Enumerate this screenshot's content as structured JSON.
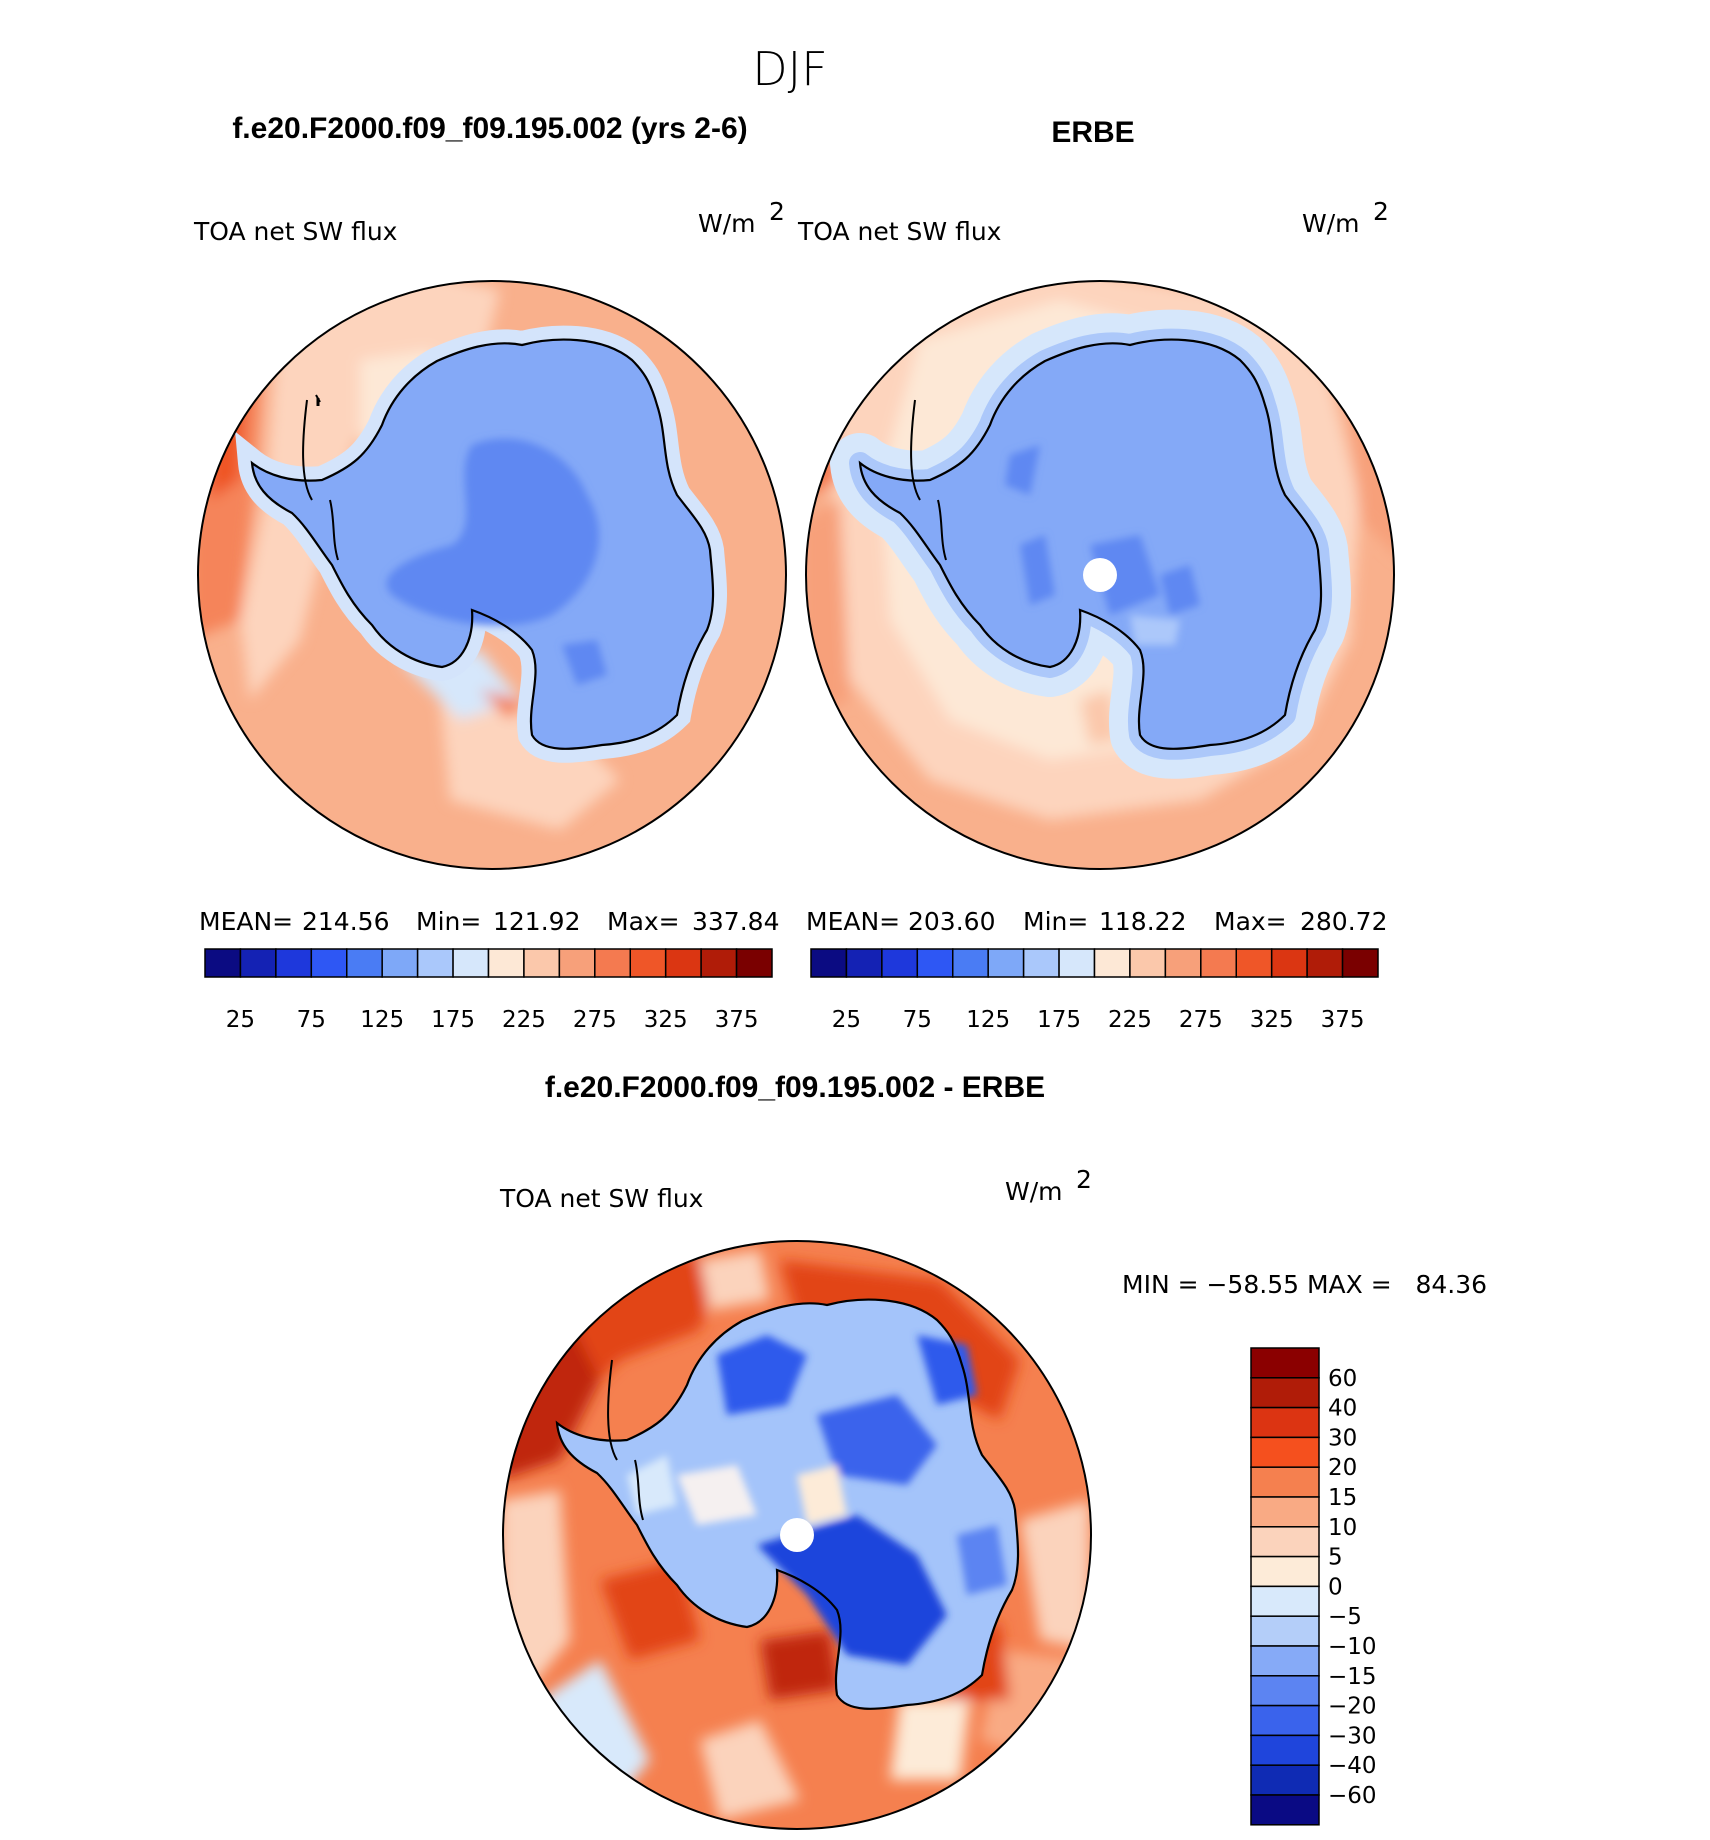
{
  "figure": {
    "season": "DJF",
    "diff_title": "f.e20.F2000.f09_f09.195.002 - ERBE"
  },
  "panels": [
    {
      "id": "model",
      "title": "f.e20.F2000.f09_f09.195.002 (yrs 2-6)",
      "variable": "TOA net SW flux",
      "units": "W/m",
      "units_exp": "2",
      "stats": {
        "mean_label": "MEAN=",
        "mean": "214.56",
        "min_label": "Min=",
        "min": "121.92",
        "max_label": "Max=",
        "max": "337.84"
      }
    },
    {
      "id": "obs",
      "title": "ERBE",
      "variable": "TOA net SW flux",
      "units": "W/m",
      "units_exp": "2",
      "stats": {
        "mean_label": "MEAN=",
        "mean": "203.60",
        "min_label": "Min=",
        "min": "118.22",
        "max_label": "Max=",
        "max": "280.72"
      }
    }
  ],
  "diff_panel": {
    "variable": "TOA net SW flux",
    "units": "W/m",
    "units_exp": "2",
    "minmax": "MIN = −58.55 MAX =   84.36"
  },
  "colorbar_abs": {
    "colors": [
      "#0b0b82",
      "#1422b4",
      "#1e38dc",
      "#2e57f4",
      "#4a7cf4",
      "#7ea8f8",
      "#aac8fb",
      "#d6e7fb",
      "#fde8d6",
      "#fbc8ab",
      "#f7a07a",
      "#f47a50",
      "#ef5628",
      "#db3612",
      "#b01c08",
      "#7a0000"
    ],
    "labels": [
      "25",
      "75",
      "125",
      "175",
      "225",
      "275",
      "325",
      "375"
    ]
  },
  "colorbar_diff": {
    "colors": [
      "#8b0000",
      "#b01c08",
      "#dc3412",
      "#f5501e",
      "#f5804f",
      "#f9aa84",
      "#fbd3bc",
      "#fdebd8",
      "#d8e9fb",
      "#b4cef9",
      "#86aaf7",
      "#5c84f2",
      "#3a63ec",
      "#1f45dc",
      "#0f2bb4",
      "#0a0a84"
    ],
    "labels": [
      "60",
      "40",
      "30",
      "20",
      "15",
      "10",
      "5",
      "0",
      "−5",
      "−10",
      "−15",
      "−20",
      "−30",
      "−40",
      "−60"
    ]
  },
  "map_colors": {
    "ocean_mid": "#f9b08c",
    "ocean_high": "#f5845a",
    "ocean_low": "#fdd4bd",
    "ice_edge": "#d4e4fb",
    "ice_light": "#acc8fa",
    "ice": "#84a9f7",
    "ice_deep": "#5e88f2",
    "diff_pos_strong": "#e24418",
    "diff_pos": "#f1744a",
    "diff_neg": "#2e5aec",
    "diff_neg_light": "#a4c4fa",
    "diff_zero": "#f5f0f0"
  }
}
